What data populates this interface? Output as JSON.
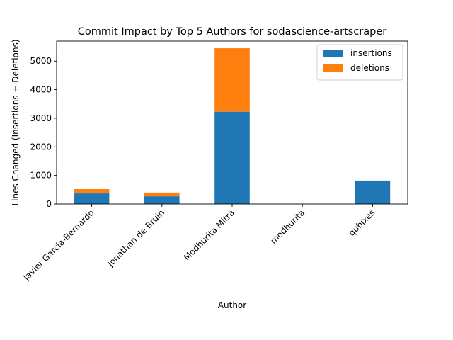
{
  "chart_data": {
    "type": "bar",
    "stacked": true,
    "title": "Commit Impact by Top 5 Authors for sodascience-artscraper",
    "xlabel": "Author",
    "ylabel": "Lines Changed (Insertions + Deletions)",
    "ylim": [
      0,
      5700
    ],
    "yticks": [
      0,
      1000,
      2000,
      3000,
      4000,
      5000
    ],
    "categories": [
      "Javier Garcia-Bernardo",
      "Jonathan de Bruin",
      "Modhurita Mitra",
      "modhurita",
      "qubixes"
    ],
    "series": [
      {
        "name": "insertions",
        "color": "#1f77b4",
        "values": [
          370,
          270,
          3230,
          0,
          820
        ]
      },
      {
        "name": "deletions",
        "color": "#ff7f0e",
        "values": [
          150,
          130,
          2220,
          0,
          0
        ]
      }
    ],
    "legend_position": "top-right",
    "grid": false
  }
}
